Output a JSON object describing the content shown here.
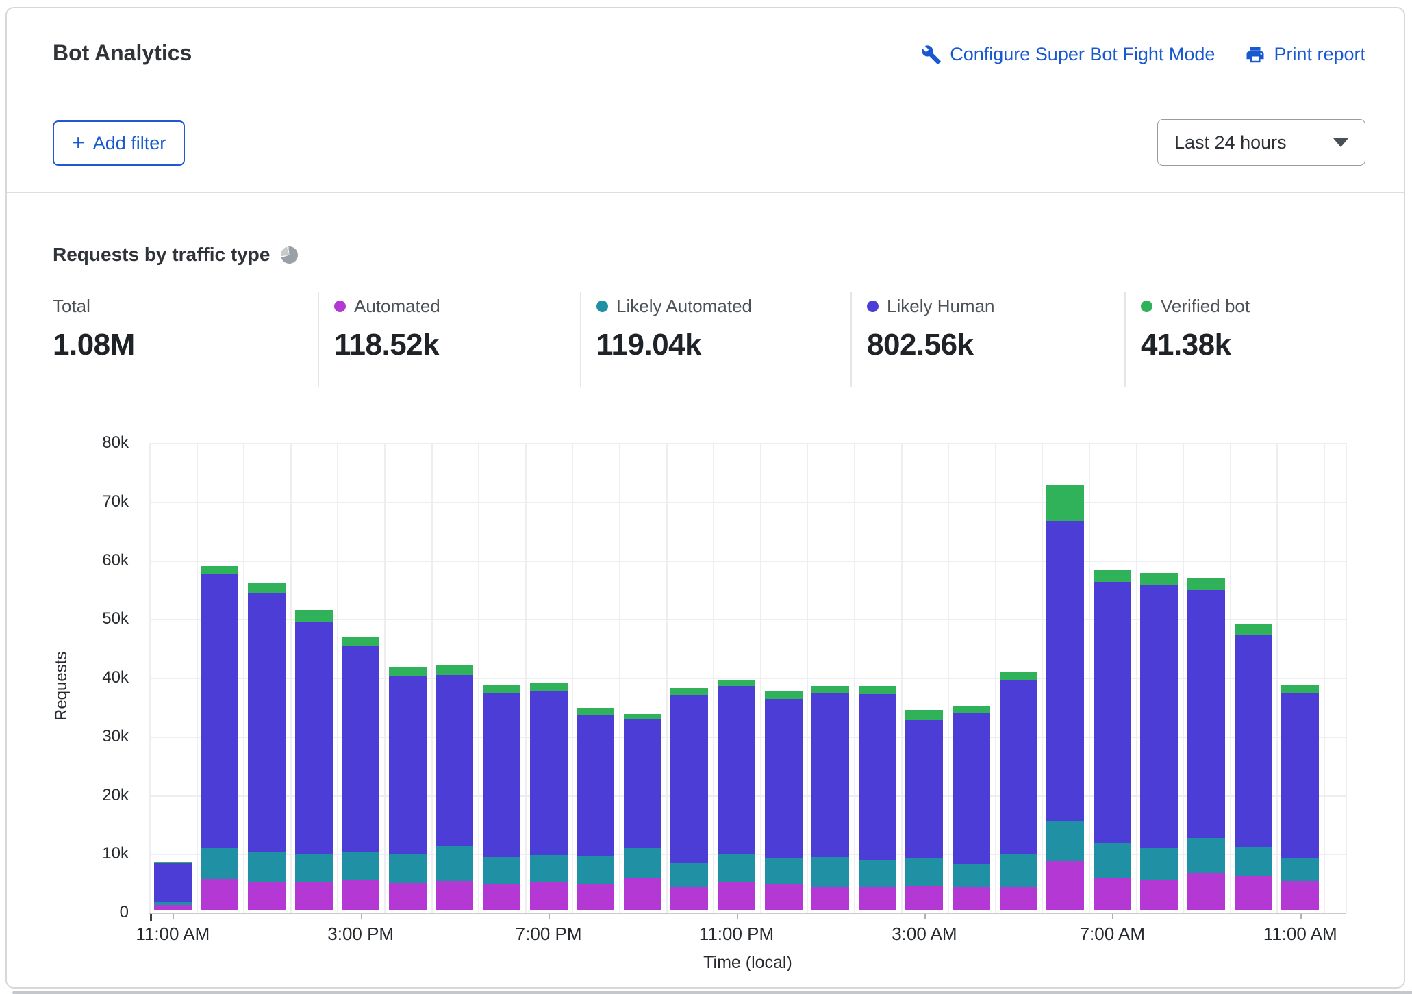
{
  "header": {
    "title": "Bot Analytics",
    "configure_link": "Configure Super Bot Fight Mode",
    "print_link": "Print report",
    "link_color": "#1859d1"
  },
  "toolbar": {
    "plus": "+",
    "add_filter_label": "Add filter",
    "time_range_value": "Last 24 hours"
  },
  "section": {
    "title": "Requests by traffic type"
  },
  "stats": {
    "items": [
      {
        "label": "Total",
        "value": "1.08M"
      },
      {
        "label": "Automated",
        "value": "118.52k",
        "color": "#b338d4"
      },
      {
        "label": "Likely Automated",
        "value": "119.04k",
        "color": "#2090a4"
      },
      {
        "label": "Likely Human",
        "value": "802.56k",
        "color": "#4b3dd6"
      },
      {
        "label": "Verified bot",
        "value": "41.38k",
        "color": "#2fb25a"
      }
    ]
  },
  "chart_data": {
    "type": "bar",
    "stacked": true,
    "title": "Requests by traffic type",
    "xlabel": "Time (local)",
    "ylabel": "Requests",
    "unit": "thousands of requests",
    "ylim": [
      0,
      80
    ],
    "grid": true,
    "yticks": [
      "80k",
      "70k",
      "60k",
      "50k",
      "40k",
      "30k",
      "20k",
      "10k",
      "0"
    ],
    "x_tick_labels_shown": [
      "11:00 AM",
      "3:00 PM",
      "7:00 PM",
      "11:00 PM",
      "3:00 AM",
      "7:00 AM",
      "11:00 AM"
    ],
    "x_tick_every": 4,
    "categories": [
      "11:00 AM",
      "12:00 PM",
      "1:00 PM",
      "2:00 PM",
      "3:00 PM",
      "4:00 PM",
      "5:00 PM",
      "6:00 PM",
      "7:00 PM",
      "8:00 PM",
      "9:00 PM",
      "10:00 PM",
      "11:00 PM",
      "12:00 AM",
      "1:00 AM",
      "2:00 AM",
      "3:00 AM",
      "4:00 AM",
      "5:00 AM",
      "6:00 AM",
      "7:00 AM",
      "8:00 AM",
      "9:00 AM",
      "10:00 AM",
      "11:00 AM"
    ],
    "series": [
      {
        "name": "Automated",
        "key": "automated",
        "color": "#b338d4",
        "values": [
          0.8,
          5.3,
          4.8,
          4.7,
          5.1,
          4.6,
          4.9,
          4.4,
          4.7,
          4.35,
          5.5,
          3.85,
          4.8,
          4.35,
          3.8,
          4.0,
          4.1,
          4.0,
          4.0,
          8.35,
          5.5,
          5.1,
          6.3,
          5.7,
          4.9
        ]
      },
      {
        "name": "Likely Automated",
        "key": "likely-automated",
        "color": "#2090a4",
        "values": [
          0.6,
          5.2,
          5.0,
          4.9,
          4.7,
          5.0,
          5.9,
          4.6,
          4.6,
          4.75,
          5.1,
          4.15,
          4.6,
          4.35,
          5.2,
          4.55,
          4.8,
          3.8,
          5.5,
          6.75,
          5.9,
          5.5,
          5.9,
          5.0,
          3.9
        ]
      },
      {
        "name": "Likely Human",
        "key": "likely-human",
        "color": "#4b3dd6",
        "values": [
          6.6,
          46.8,
          44.2,
          39.5,
          35.1,
          30.2,
          29.2,
          27.9,
          27.9,
          24.1,
          21.9,
          28.6,
          28.7,
          27.2,
          27.9,
          28.15,
          23.4,
          25.7,
          29.7,
          51.2,
          44.5,
          44.7,
          42.3,
          36.1,
          28.1
        ]
      },
      {
        "name": "Verified bot",
        "key": "verified-bot",
        "color": "#2fb25a",
        "values": [
          0.2,
          1.3,
          1.6,
          2.0,
          1.6,
          1.5,
          1.8,
          1.5,
          1.5,
          1.2,
          0.9,
          1.2,
          1.0,
          1.3,
          1.2,
          1.4,
          1.8,
          1.3,
          1.3,
          6.1,
          1.9,
          2.1,
          2.0,
          2.0,
          1.5
        ]
      }
    ],
    "legend_position": "top"
  }
}
